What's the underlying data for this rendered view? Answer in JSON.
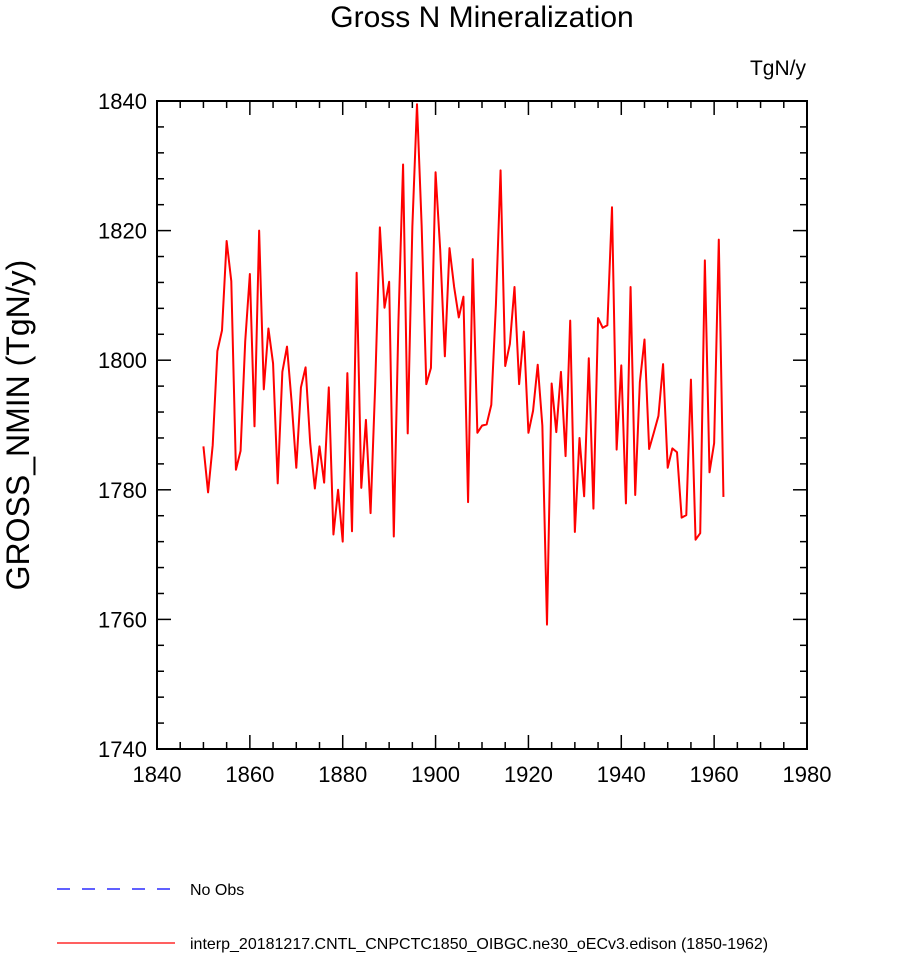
{
  "chart_data": {
    "type": "line",
    "title": "Gross N Mineralization",
    "units_label": "TgN/y",
    "xlabel": "",
    "ylabel": "GROSS_NMIN  (TgN/y)",
    "xlim": [
      1840,
      1980
    ],
    "ylim": [
      1740,
      1840
    ],
    "x_ticks": [
      1840,
      1860,
      1880,
      1900,
      1920,
      1940,
      1960,
      1980
    ],
    "y_ticks": [
      1740,
      1760,
      1780,
      1800,
      1820,
      1840
    ],
    "legend_position": "bottom",
    "series": [
      {
        "name": "No Obs",
        "color": "#0000ff",
        "dash": "dashed",
        "x": [],
        "y": []
      },
      {
        "name": "interp_20181217.CNTL_CNPCTC1850_OIBGC.ne30_oECv3.edison (1850-1962)",
        "color": "#ff0000",
        "dash": "solid",
        "x": [
          1850,
          1851,
          1852,
          1853,
          1854,
          1855,
          1856,
          1857,
          1858,
          1859,
          1860,
          1861,
          1862,
          1863,
          1864,
          1865,
          1866,
          1867,
          1868,
          1869,
          1870,
          1871,
          1872,
          1873,
          1874,
          1875,
          1876,
          1877,
          1878,
          1879,
          1880,
          1881,
          1882,
          1883,
          1884,
          1885,
          1886,
          1887,
          1888,
          1889,
          1890,
          1891,
          1892,
          1893,
          1894,
          1895,
          1896,
          1897,
          1898,
          1899,
          1900,
          1901,
          1902,
          1903,
          1904,
          1905,
          1906,
          1907,
          1908,
          1909,
          1910,
          1911,
          1912,
          1913,
          1914,
          1915,
          1916,
          1917,
          1918,
          1919,
          1920,
          1921,
          1922,
          1923,
          1924,
          1925,
          1926,
          1927,
          1928,
          1929,
          1930,
          1931,
          1932,
          1933,
          1934,
          1935,
          1936,
          1937,
          1938,
          1939,
          1940,
          1941,
          1942,
          1943,
          1944,
          1945,
          1946,
          1947,
          1948,
          1949,
          1950,
          1951,
          1952,
          1953,
          1954,
          1955,
          1956,
          1957,
          1958,
          1959,
          1960,
          1961,
          1962
        ],
        "y": [
          1786.7,
          1779.6,
          1786.9,
          1801.4,
          1804.6,
          1818.4,
          1812.2,
          1783.1,
          1786.0,
          1802.9,
          1813.3,
          1789.8,
          1820.0,
          1795.5,
          1804.9,
          1799.5,
          1781.0,
          1798.2,
          1802.1,
          1793.5,
          1783.4,
          1795.8,
          1798.9,
          1787.2,
          1780.2,
          1786.7,
          1781.1,
          1795.8,
          1773.1,
          1780.0,
          1772.0,
          1798.0,
          1773.6,
          1813.5,
          1780.3,
          1790.8,
          1776.4,
          1796.2,
          1820.5,
          1808.1,
          1812.1,
          1772.8,
          1805.9,
          1830.2,
          1788.7,
          1820.6,
          1839.5,
          1820.8,
          1796.3,
          1798.8,
          1829.0,
          1817.0,
          1800.6,
          1817.3,
          1811.3,
          1806.6,
          1809.8,
          1778.1,
          1815.6,
          1788.8,
          1789.9,
          1790.1,
          1793.1,
          1808.6,
          1829.3,
          1799.1,
          1802.5,
          1811.3,
          1796.3,
          1804.4,
          1788.8,
          1792.2,
          1799.3,
          1789.9,
          1759.2,
          1796.4,
          1788.9,
          1798.2,
          1785.2,
          1806.1,
          1773.5,
          1788.0,
          1779.0,
          1800.3,
          1777.1,
          1806.5,
          1805.0,
          1805.4,
          1823.6,
          1786.2,
          1799.2,
          1777.9,
          1811.3,
          1779.2,
          1796.6,
          1803.2,
          1786.3,
          1788.8,
          1791.4,
          1799.4,
          1783.4,
          1786.4,
          1785.8,
          1775.7,
          1776.1,
          1797.0,
          1772.3,
          1773.3,
          1815.4,
          1782.7,
          1787.2,
          1818.6,
          1778.9
        ]
      }
    ]
  }
}
